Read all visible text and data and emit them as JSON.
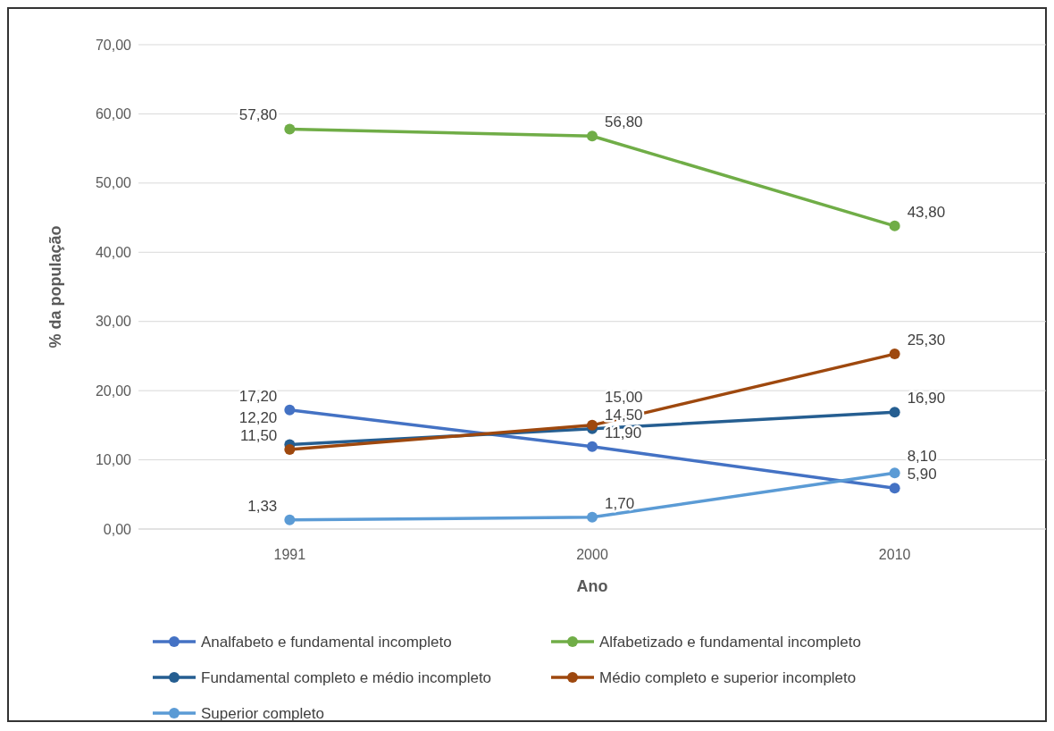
{
  "chart_data": {
    "type": "line",
    "xlabel": "Ano",
    "ylabel": "% da população",
    "categories": [
      "1991",
      "2000",
      "2010"
    ],
    "ylim": [
      0,
      70
    ],
    "yticks": [
      {
        "value": 0,
        "label": "0,00"
      },
      {
        "value": 10,
        "label": "10,00"
      },
      {
        "value": 20,
        "label": "20,00"
      },
      {
        "value": 30,
        "label": "30,00"
      },
      {
        "value": 40,
        "label": "40,00"
      },
      {
        "value": 50,
        "label": "50,00"
      },
      {
        "value": 60,
        "label": "60,00"
      },
      {
        "value": 70,
        "label": "70,00"
      }
    ],
    "grid": "y",
    "legend": "bottom",
    "marker": "circle",
    "line_style": "solid",
    "series": [
      {
        "name": "Analfabeto e fundamental incompleto",
        "color": "#4472c4",
        "values": [
          17.2,
          11.9,
          5.9
        ],
        "value_labels": [
          "17,20",
          "11,90",
          "5,90"
        ]
      },
      {
        "name": "Alfabetizado e fundamental incompleto",
        "color": "#70ad47",
        "values": [
          57.8,
          56.8,
          43.8
        ],
        "value_labels": [
          "57,80",
          "56,80",
          "43,80"
        ]
      },
      {
        "name": "Fundamental completo e médio incompleto",
        "color": "#255e91",
        "values": [
          12.2,
          14.5,
          16.9
        ],
        "value_labels": [
          "12,20",
          "14,50",
          "16,90"
        ]
      },
      {
        "name": "Médio completo e superior incompleto",
        "color": "#9e480e",
        "values": [
          11.5,
          15.0,
          25.3
        ],
        "value_labels": [
          "11,50",
          "15,00",
          "25,30"
        ]
      },
      {
        "name": "Superior completo",
        "color": "#5b9bd5",
        "values": [
          1.33,
          1.7,
          8.1
        ],
        "value_labels": [
          "1,33",
          "1,70",
          "8,10"
        ]
      }
    ]
  }
}
